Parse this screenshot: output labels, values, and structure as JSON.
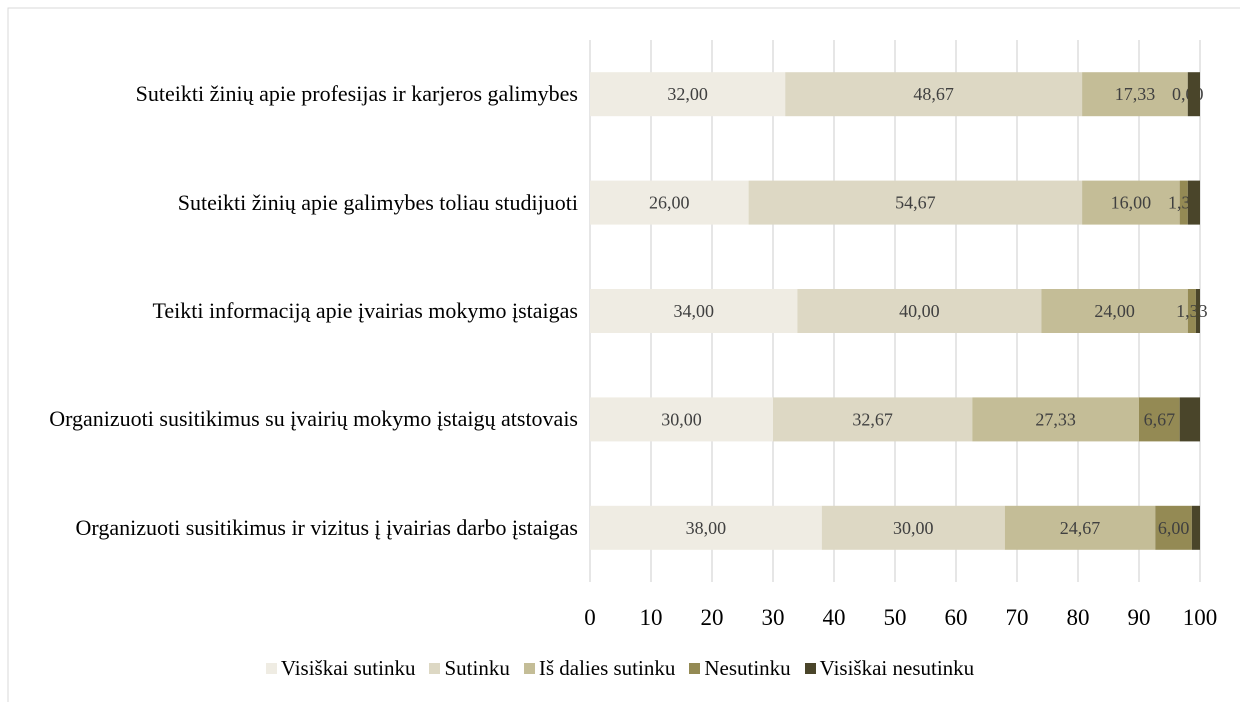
{
  "chart_data": {
    "type": "stacked-barh",
    "categories": [
      "Suteikti žinių apie profesijas ir karjeros galimybes",
      "Suteikti žinių apie galimybes toliau studijuoti",
      "Teikti informaciją apie įvairias mokymo įstaigas",
      "Organizuoti susitikimus su įvairių mokymo įstaigų atstovais",
      "Organizuoti susitikimus ir vizitus į įvairias darbo įstaigas"
    ],
    "series": [
      {
        "name": "Visiškai sutinku",
        "color": "#efece3",
        "values": [
          32,
          26,
          34,
          30,
          38
        ],
        "value_labels": [
          "32,00",
          "26,00",
          "34,00",
          "30,00",
          "38,00"
        ]
      },
      {
        "name": "Sutinku",
        "color": "#ddd8c4",
        "values": [
          48.67,
          54.67,
          40,
          32.67,
          30
        ],
        "value_labels": [
          "48,67",
          "54,67",
          "40,00",
          "32,67",
          "30,00"
        ]
      },
      {
        "name": "Iš dalies sutinku",
        "color": "#c4bd97",
        "values": [
          17.33,
          16,
          24,
          27.33,
          24.67
        ],
        "value_labels": [
          "17,33",
          "16,00",
          "24,00",
          "27,33",
          "24,67"
        ]
      },
      {
        "name": "Nesutinku",
        "color": "#948a54",
        "values": [
          0,
          1.33,
          1.33,
          6.67,
          6
        ],
        "value_labels": [
          "0,00",
          "1,33",
          "1,33",
          "6,67",
          "6,00"
        ]
      },
      {
        "name": "Visiškai nesutinku",
        "color": "#4a452a",
        "values": [
          2,
          2,
          0.67,
          3.33,
          1.33
        ],
        "value_labels": [
          null,
          null,
          null,
          null,
          null
        ]
      }
    ],
    "xlim": [
      0,
      100
    ],
    "xticks": [
      0,
      10,
      20,
      30,
      40,
      50,
      60,
      70,
      80,
      90,
      100
    ],
    "grid": true,
    "legend": "bottom"
  }
}
